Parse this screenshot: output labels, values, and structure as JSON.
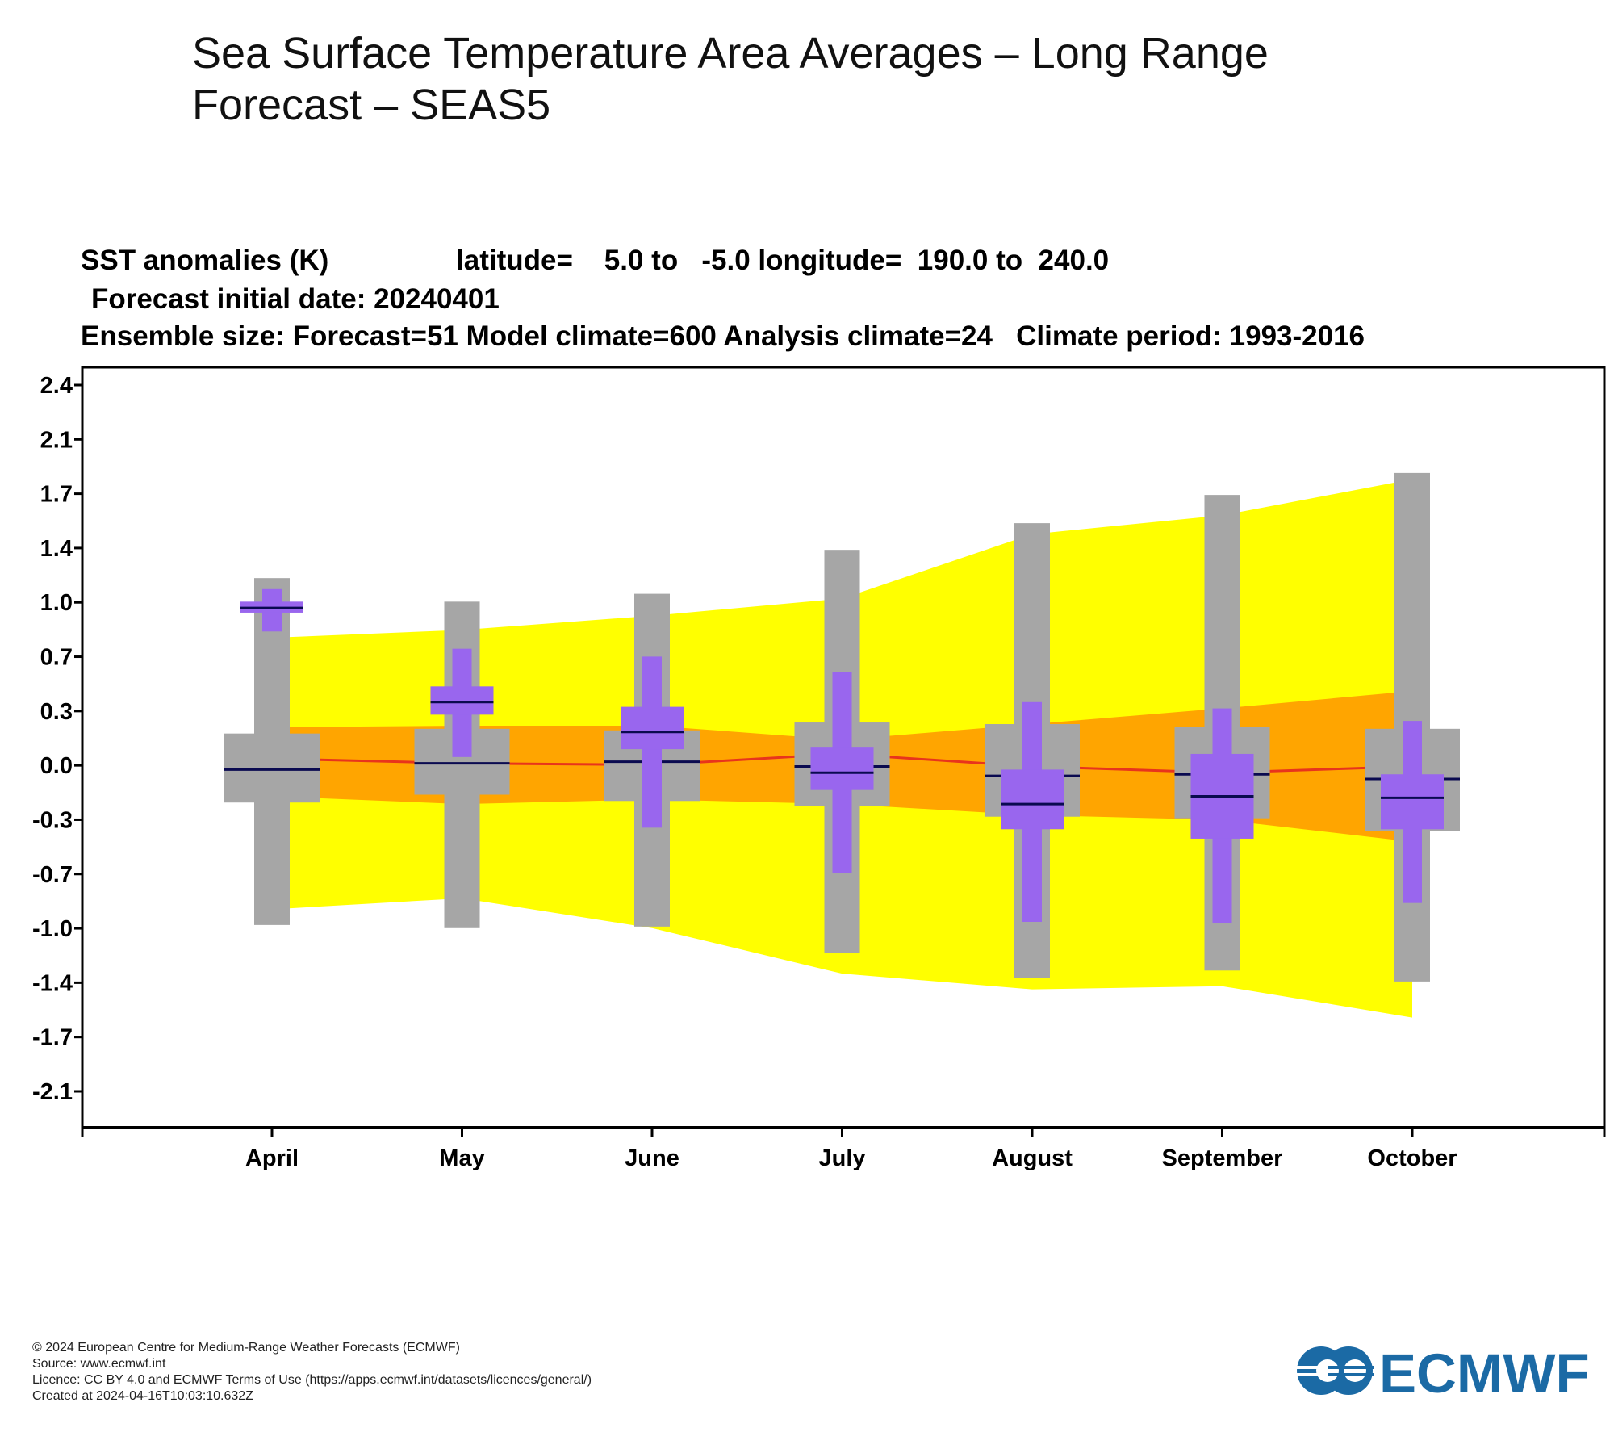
{
  "page": {
    "title": "Sea Surface Temperature Area Averages – Long Range Forecast – SEAS5"
  },
  "chart_data": {
    "type": "box",
    "header": {
      "line1_left": "SST anomalies (K)",
      "line1_lat": "latitude=    5.0 to   -5.0 longitude=  190.0 to  240.0",
      "line2": "Forecast initial date: 20240401",
      "line3": "Ensemble size: Forecast=51 Model climate=600 Analysis climate=24   Climate period: 1993-2016"
    },
    "categories": [
      "April",
      "May",
      "June",
      "July",
      "August",
      "September",
      "October"
    ],
    "yticks": [
      "2.4",
      "2.1",
      "1.7",
      "1.4",
      "1.0",
      "0.7",
      "0.3",
      "0.0",
      "-0.3",
      "-0.7",
      "-1.0",
      "-1.4",
      "-1.7",
      "-2.1"
    ],
    "ylim": [
      -2.35,
      2.55
    ],
    "grid": false,
    "colors": {
      "outer_band": "#ffff00",
      "inner_band": "#ffa500",
      "model_climate_box": "#a6a6a6",
      "forecast_box": "#9966ee",
      "median_line": "#0a0a50",
      "analysis_line": "#e8341c"
    },
    "model_climate": [
      {
        "min": -1.04,
        "q1": -0.26,
        "median": -0.05,
        "q3": 0.18,
        "max": 1.17
      },
      {
        "min": -1.06,
        "q1": -0.21,
        "median": -0.01,
        "q3": 0.21,
        "max": 1.02
      },
      {
        "min": -1.05,
        "q1": -0.25,
        "median": 0.0,
        "q3": 0.2,
        "max": 1.07
      },
      {
        "min": -1.22,
        "q1": -0.28,
        "median": -0.03,
        "q3": 0.25,
        "max": 1.35
      },
      {
        "min": -1.38,
        "q1": -0.35,
        "median": -0.09,
        "q3": 0.24,
        "max": 1.52
      },
      {
        "min": -1.33,
        "q1": -0.36,
        "median": -0.08,
        "q3": 0.22,
        "max": 1.7
      },
      {
        "min": -1.4,
        "q1": -0.44,
        "median": -0.11,
        "q3": 0.21,
        "max": 1.84
      }
    ],
    "forecast": [
      {
        "min": 0.83,
        "q1": 0.95,
        "median": 0.98,
        "q3": 1.02,
        "max": 1.1
      },
      {
        "min": 0.03,
        "q1": 0.3,
        "median": 0.38,
        "q3": 0.48,
        "max": 0.72
      },
      {
        "min": -0.42,
        "q1": 0.08,
        "median": 0.19,
        "q3": 0.35,
        "max": 0.67
      },
      {
        "min": -0.71,
        "q1": -0.18,
        "median": -0.07,
        "q3": 0.09,
        "max": 0.57
      },
      {
        "min": -1.02,
        "q1": -0.43,
        "median": -0.27,
        "q3": -0.05,
        "max": 0.38
      },
      {
        "min": -1.03,
        "q1": -0.49,
        "median": -0.22,
        "q3": 0.05,
        "max": 0.34
      },
      {
        "min": -0.9,
        "q1": -0.43,
        "median": -0.23,
        "q3": -0.08,
        "max": 0.26
      }
    ],
    "outer_band": {
      "upper": [
        0.79,
        0.84,
        0.93,
        1.04,
        1.45,
        1.57,
        1.8
      ],
      "lower": [
        -0.94,
        -0.87,
        -1.06,
        -1.35,
        -1.45,
        -1.43,
        -1.63
      ]
    },
    "inner_band": {
      "upper": [
        0.22,
        0.23,
        0.23,
        0.14,
        0.24,
        0.34,
        0.45
      ],
      "lower": [
        -0.22,
        -0.27,
        -0.24,
        -0.27,
        -0.34,
        -0.37,
        -0.51
      ]
    },
    "analysis": [
      0.02,
      -0.01,
      -0.02,
      0.05,
      -0.03,
      -0.07,
      -0.03
    ]
  },
  "footer": {
    "copyright": "© 2024 European Centre for Medium-Range Weather Forecasts (ECMWF)",
    "source": "Source: www.ecmwf.int",
    "licence": "Licence: CC BY 4.0 and ECMWF Terms of Use (https://apps.ecmwf.int/datasets/licences/general/)",
    "created": "Created at 2024-04-16T10:03:10.632Z"
  },
  "logo": {
    "text": "ECMWF",
    "color": "#1b6aa5"
  }
}
